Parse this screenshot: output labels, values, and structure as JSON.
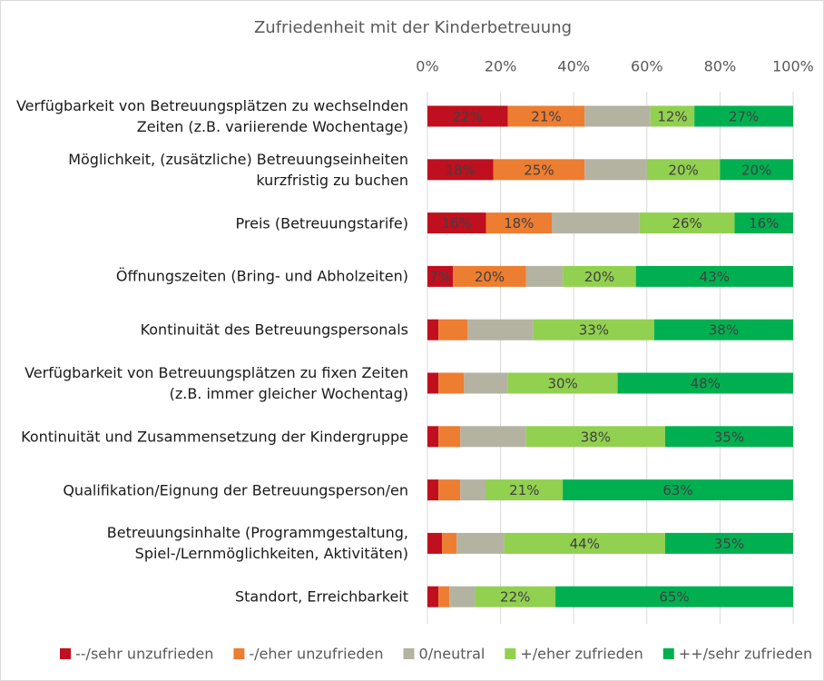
{
  "chart_data": {
    "type": "stacked-bar-horizontal",
    "title": "Zufriedenheit mit der Kinderbetreuung",
    "categories": [
      "Verfügbarkeit von Betreuungsplätzen zu wechselnden Zeiten (z.B. variierende Wochentage)",
      "Möglichkeit, (zusätzliche) Betreuungseinheiten kurzfristig zu buchen",
      "Preis (Betreuungstarife)",
      "Öffnungszeiten (Bring- und Abholzeiten)",
      "Kontinuität des Betreuungspersonals",
      "Verfügbarkeit von Betreuungsplätzen zu fixen Zeiten (z.B. immer gleicher Wochentag)",
      "Kontinuität und Zusammensetzung der Kindergruppe",
      "Qualifikation/Eignung der Betreuungsperson/en",
      "Betreuungsinhalte (Programmgestaltung, Spiel-/Lernmöglichkeiten, Aktivitäten)",
      "Standort, Erreichbarkeit"
    ],
    "series": [
      {
        "name": "--/sehr unzufrieden",
        "color": "#c00f1e",
        "values": [
          22,
          18,
          16,
          7,
          3,
          3,
          3,
          3,
          4,
          3
        ],
        "value_labels": [
          "22%",
          "18%",
          "16%",
          "7%",
          null,
          null,
          null,
          null,
          null,
          null
        ]
      },
      {
        "name": "-/eher unzufrieden",
        "color": "#ed7d31",
        "values": [
          21,
          25,
          18,
          20,
          8,
          7,
          6,
          6,
          4,
          3
        ],
        "value_labels": [
          "21%",
          "25%",
          "18%",
          "20%",
          null,
          null,
          null,
          null,
          null,
          null
        ]
      },
      {
        "name": "0/neutral",
        "color": "#b4b2a1",
        "values": [
          18,
          17,
          24,
          10,
          18,
          12,
          18,
          7,
          13,
          7
        ],
        "value_labels": [
          null,
          null,
          null,
          null,
          null,
          null,
          null,
          null,
          null,
          null
        ]
      },
      {
        "name": "+/eher zufrieden",
        "color": "#92d050",
        "values": [
          12,
          20,
          26,
          20,
          33,
          30,
          38,
          21,
          44,
          22
        ],
        "value_labels": [
          "12%",
          "20%",
          "26%",
          "20%",
          "33%",
          "30%",
          "38%",
          "21%",
          "44%",
          "22%"
        ]
      },
      {
        "name": "++/sehr zufrieden",
        "color": "#00b050",
        "values": [
          27,
          20,
          16,
          43,
          38,
          48,
          35,
          63,
          35,
          65
        ],
        "value_labels": [
          "27%",
          "20%",
          "16%",
          "43%",
          "38%",
          "48%",
          "35%",
          "63%",
          "35%",
          "65%"
        ]
      }
    ],
    "xlim": [
      0,
      100
    ],
    "xticks": [
      {
        "value": 0,
        "label": "0%"
      },
      {
        "value": 20,
        "label": "20%"
      },
      {
        "value": 40,
        "label": "40%"
      },
      {
        "value": 60,
        "label": "60%"
      },
      {
        "value": 80,
        "label": "80%"
      },
      {
        "value": 100,
        "label": "100%"
      }
    ],
    "grid": true,
    "legend": "bottom"
  }
}
